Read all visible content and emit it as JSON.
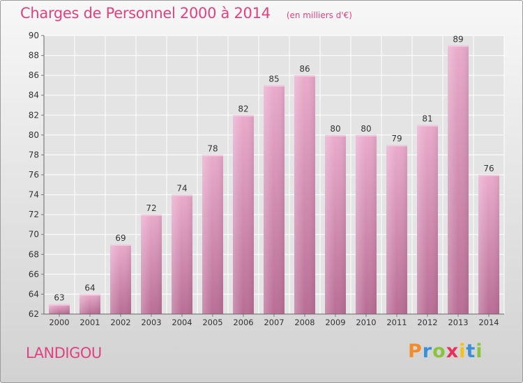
{
  "title": "Charges de Personnel 2000 à 2014",
  "subtitle": "(en milliers d'€)",
  "commune": "LANDIGOU",
  "logo": {
    "letters": [
      "P",
      "r",
      "o",
      "x",
      "i",
      "t",
      "i"
    ],
    "colors": [
      "#f28c28",
      "#3b8fd6",
      "#8ac43f",
      "#e8305a",
      "#f2c21b",
      "#3b8fd6",
      "#8ac43f"
    ]
  },
  "colors": {
    "bar": "#d889b3",
    "title": "#e2417f"
  },
  "chart_data": {
    "type": "bar",
    "categories": [
      "2000",
      "2001",
      "2002",
      "2003",
      "2004",
      "2005",
      "2006",
      "2007",
      "2008",
      "2009",
      "2010",
      "2011",
      "2012",
      "2013",
      "2014"
    ],
    "values": [
      63,
      64,
      69,
      72,
      74,
      78,
      82,
      85,
      86,
      80,
      80,
      79,
      81,
      89,
      76
    ],
    "ylim": [
      62,
      90
    ],
    "yticks": [
      62,
      64,
      66,
      68,
      70,
      72,
      74,
      76,
      78,
      80,
      82,
      84,
      86,
      88,
      90
    ],
    "grid": true,
    "xlabel": "",
    "ylabel": ""
  }
}
